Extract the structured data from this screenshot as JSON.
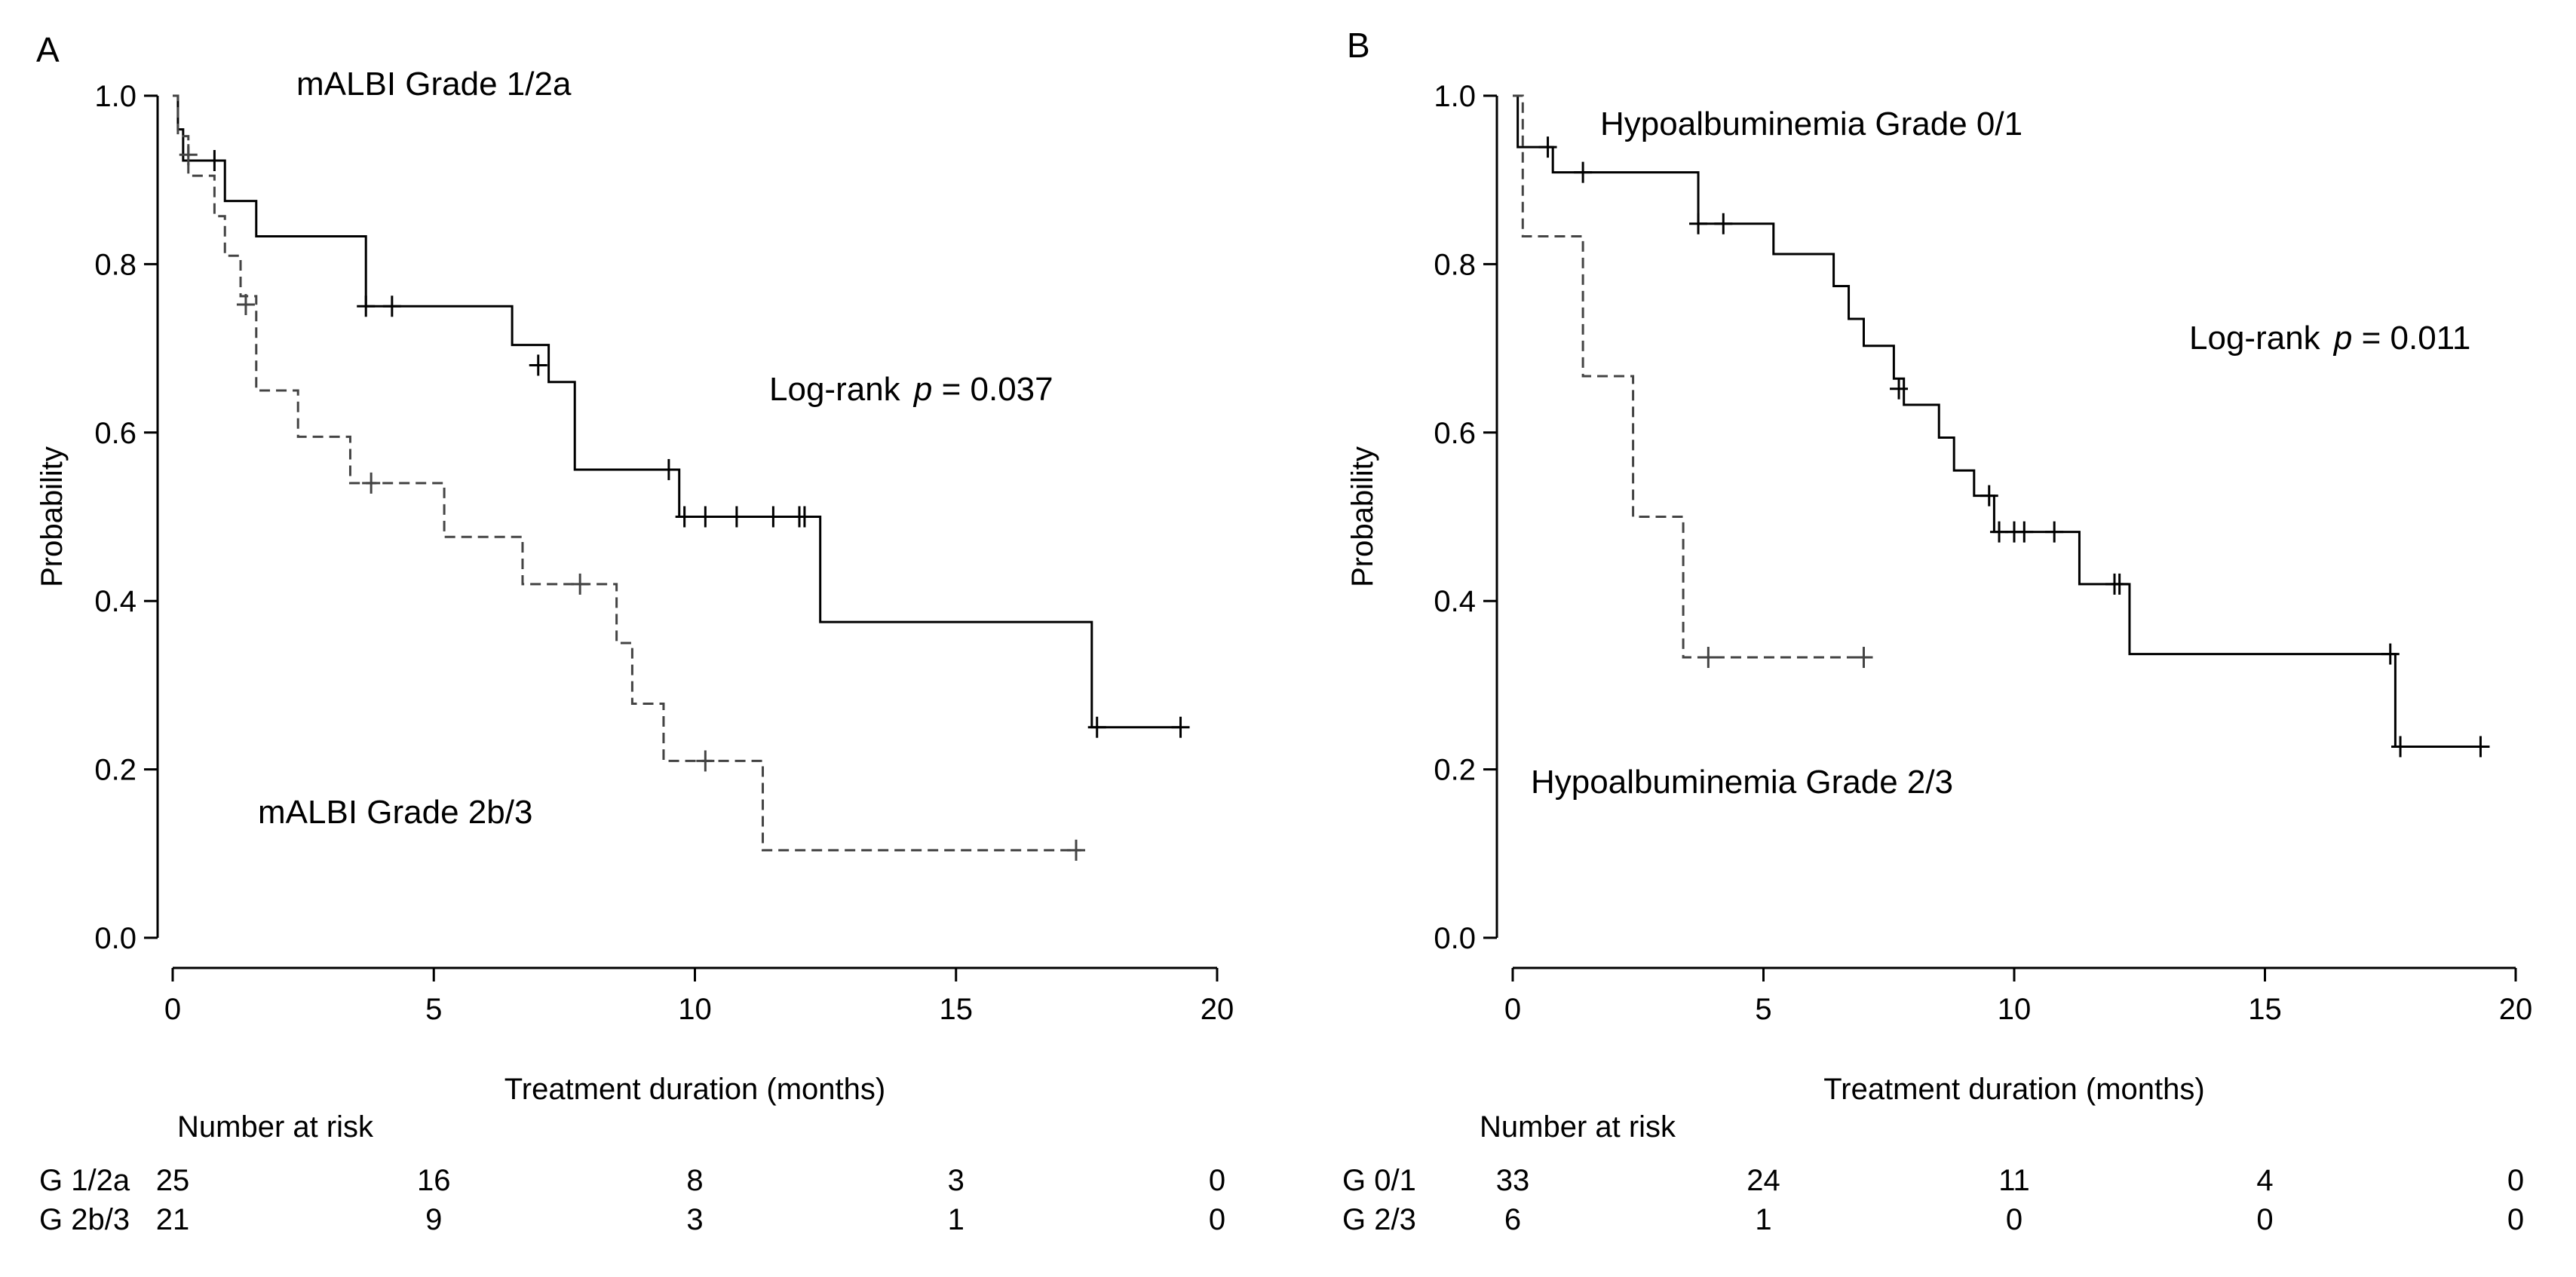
{
  "chart_data": [
    {
      "panel_label": "A",
      "type": "line",
      "subtype": "kaplan-meier step",
      "xlabel": "Treatment duration (months)",
      "ylabel": "Probability",
      "xlim": [
        0,
        20
      ],
      "ylim": [
        0,
        1
      ],
      "xticks": [
        "0",
        "5",
        "10",
        "15",
        "20"
      ],
      "yticks": [
        "0.0",
        "0.2",
        "0.4",
        "0.6",
        "0.8",
        "1.0"
      ],
      "annotation_top": "mALBI Grade 1/2a",
      "annotation_bottom": "mALBI Grade 2b/3",
      "logrank_prefix": "Log-rank ",
      "logrank_p": "p",
      "logrank_value": " = 0.037",
      "risk_title": "Number at risk",
      "risk_times": [
        0,
        5,
        10,
        15,
        20
      ],
      "series": [
        {
          "risk_label": "G 1/2a",
          "style": "solid",
          "color": "#000000",
          "risk_counts": [
            "25",
            "16",
            "8",
            "3",
            "0"
          ],
          "steps": [
            [
              0,
              1.0
            ],
            [
              0.1,
              0.96
            ],
            [
              0.2,
              0.923
            ],
            [
              1.0,
              0.875
            ],
            [
              1.6,
              0.833
            ],
            [
              3.7,
              0.75
            ],
            [
              6.5,
              0.704
            ],
            [
              7.2,
              0.66
            ],
            [
              7.7,
              0.556
            ],
            [
              9.7,
              0.5
            ],
            [
              12.4,
              0.375
            ],
            [
              17.6,
              0.25
            ]
          ],
          "end_x": 19.3,
          "censor": [
            [
              0.8,
              0.923
            ],
            [
              3.7,
              0.75
            ],
            [
              4.2,
              0.75
            ],
            [
              7.0,
              0.68
            ],
            [
              9.5,
              0.556
            ],
            [
              9.8,
              0.5
            ],
            [
              10.2,
              0.5
            ],
            [
              10.8,
              0.5
            ],
            [
              11.5,
              0.5
            ],
            [
              12.0,
              0.5
            ],
            [
              12.1,
              0.5
            ],
            [
              17.7,
              0.25
            ],
            [
              19.3,
              0.25
            ]
          ]
        },
        {
          "risk_label": "G 2b/3",
          "style": "dashed",
          "color": "#000000",
          "risk_counts": [
            "21",
            "9",
            "3",
            "1",
            "0"
          ],
          "steps": [
            [
              0,
              1.0
            ],
            [
              0.1,
              0.952
            ],
            [
              0.3,
              0.905
            ],
            [
              0.8,
              0.857
            ],
            [
              1.0,
              0.81
            ],
            [
              1.3,
              0.762
            ],
            [
              1.6,
              0.65
            ],
            [
              2.4,
              0.595
            ],
            [
              3.4,
              0.54
            ],
            [
              5.2,
              0.476
            ],
            [
              6.7,
              0.42
            ],
            [
              8.5,
              0.35
            ],
            [
              8.8,
              0.278
            ],
            [
              9.4,
              0.21
            ],
            [
              11.3,
              0.104
            ]
          ],
          "end_x": 17.4,
          "censor": [
            [
              0.3,
              0.93
            ],
            [
              1.4,
              0.752
            ],
            [
              3.8,
              0.54
            ],
            [
              7.8,
              0.42
            ],
            [
              10.2,
              0.21
            ],
            [
              17.3,
              0.104
            ]
          ]
        }
      ]
    },
    {
      "panel_label": "B",
      "type": "line",
      "subtype": "kaplan-meier step",
      "xlabel": "Treatment duration (months)",
      "ylabel": "Probability",
      "xlim": [
        0,
        20
      ],
      "ylim": [
        0,
        1
      ],
      "xticks": [
        "0",
        "5",
        "10",
        "15",
        "20"
      ],
      "yticks": [
        "0.0",
        "0.2",
        "0.4",
        "0.6",
        "0.8",
        "1.0"
      ],
      "annotation_top": "Hypoalbuminemia Grade 0/1",
      "annotation_bottom": "Hypoalbuminemia Grade 2/3",
      "logrank_prefix": "Log-rank ",
      "logrank_p": "p",
      "logrank_value": " = 0.011",
      "risk_title": "Number at risk",
      "risk_times": [
        0,
        5,
        10,
        15,
        20
      ],
      "series": [
        {
          "risk_label": "G 0/1",
          "style": "solid",
          "color": "#000000",
          "risk_counts": [
            "33",
            "24",
            "11",
            "4",
            "0"
          ],
          "steps": [
            [
              0,
              1.0
            ],
            [
              0.1,
              0.939
            ],
            [
              0.8,
              0.909
            ],
            [
              3.7,
              0.848
            ],
            [
              5.2,
              0.812
            ],
            [
              6.4,
              0.774
            ],
            [
              6.7,
              0.735
            ],
            [
              7.0,
              0.703
            ],
            [
              7.6,
              0.664
            ],
            [
              7.8,
              0.633
            ],
            [
              8.5,
              0.594
            ],
            [
              8.8,
              0.555
            ],
            [
              9.2,
              0.525
            ],
            [
              9.6,
              0.482
            ],
            [
              11.3,
              0.42
            ],
            [
              12.3,
              0.337
            ],
            [
              17.6,
              0.227
            ]
          ],
          "end_x": 19.4,
          "censor": [
            [
              0.7,
              0.939
            ],
            [
              1.4,
              0.909
            ],
            [
              3.7,
              0.848
            ],
            [
              4.2,
              0.848
            ],
            [
              7.7,
              0.652
            ],
            [
              9.5,
              0.525
            ],
            [
              9.7,
              0.482
            ],
            [
              10.0,
              0.482
            ],
            [
              10.2,
              0.482
            ],
            [
              10.8,
              0.482
            ],
            [
              12.0,
              0.42
            ],
            [
              12.1,
              0.42
            ],
            [
              17.5,
              0.337
            ],
            [
              17.7,
              0.227
            ],
            [
              19.3,
              0.227
            ]
          ]
        },
        {
          "risk_label": "G 2/3",
          "style": "dashed",
          "color": "#000000",
          "risk_counts": [
            "6",
            "1",
            "0",
            "0",
            "0"
          ],
          "steps": [
            [
              0,
              1.0
            ],
            [
              0.2,
              0.833
            ],
            [
              1.4,
              0.667
            ],
            [
              2.4,
              0.5
            ],
            [
              3.4,
              0.333
            ]
          ],
          "end_x": 7.1,
          "censor": [
            [
              3.9,
              0.333
            ],
            [
              7.0,
              0.333
            ]
          ]
        }
      ]
    }
  ]
}
